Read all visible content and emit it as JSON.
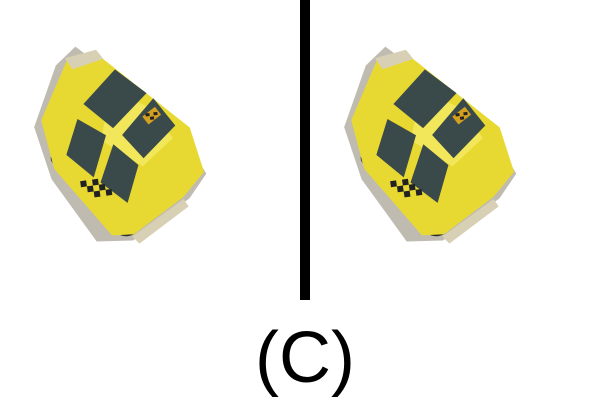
{
  "figure": {
    "label": "(C)",
    "left_image": {
      "icon": "yellow-taxi-toy-car-icon"
    },
    "right_image": {
      "icon": "yellow-taxi-toy-car-icon"
    },
    "divider_color": "#000000",
    "taxi_body_color": "#e8d832",
    "taxi_window_color": "#3a4a4a",
    "taxi_checker_color": "#222222"
  }
}
